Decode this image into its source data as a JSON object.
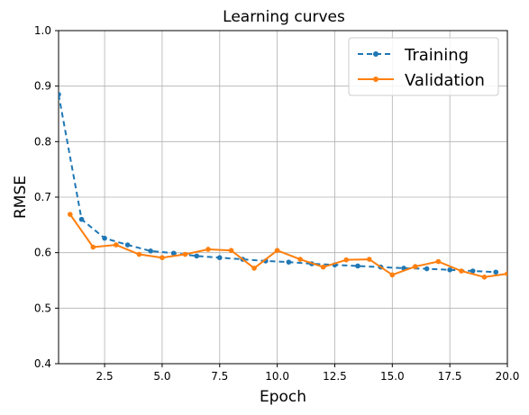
{
  "chart_data": {
    "type": "line",
    "title": "Learning curves",
    "xlabel": "Epoch",
    "ylabel": "RMSE",
    "xlim": [
      0.5,
      20.0
    ],
    "ylim": [
      0.4,
      1.0
    ],
    "grid": true,
    "legend_position": "top-right",
    "x_ticks": [
      2.5,
      5.0,
      7.5,
      10.0,
      12.5,
      15.0,
      17.5,
      20.0
    ],
    "x_tick_labels": [
      "2.5",
      "5.0",
      "7.5",
      "10.0",
      "12.5",
      "15.0",
      "17.5",
      "20.0"
    ],
    "y_ticks": [
      0.4,
      0.5,
      0.6,
      0.7,
      0.8,
      0.9,
      1.0
    ],
    "y_tick_labels": [
      "0.4",
      "0.5",
      "0.6",
      "0.7",
      "0.8",
      "0.9",
      "1.0"
    ],
    "series": [
      {
        "name": "Training",
        "color": "#1f77b4",
        "line_style": "dashed",
        "marker": "dot",
        "x": [
          0.5,
          1.5,
          2.5,
          3.5,
          4.5,
          5.5,
          6.5,
          7.5,
          8.5,
          9.5,
          10.5,
          11.5,
          12.5,
          13.5,
          14.5,
          15.5,
          16.5,
          17.5,
          18.5,
          19.5
        ],
        "y": [
          0.885,
          0.66,
          0.626,
          0.614,
          0.603,
          0.599,
          0.594,
          0.591,
          0.588,
          0.585,
          0.583,
          0.58,
          0.578,
          0.576,
          0.574,
          0.572,
          0.571,
          0.569,
          0.567,
          0.565
        ]
      },
      {
        "name": "Validation",
        "color": "#ff7f0e",
        "line_style": "solid",
        "marker": "dot",
        "x": [
          1,
          2,
          3,
          4,
          5,
          6,
          7,
          8,
          9,
          10,
          11,
          12,
          13,
          14,
          15,
          16,
          17,
          18,
          19,
          20
        ],
        "y": [
          0.669,
          0.61,
          0.614,
          0.597,
          0.591,
          0.597,
          0.606,
          0.604,
          0.572,
          0.604,
          0.588,
          0.574,
          0.587,
          0.588,
          0.56,
          0.575,
          0.584,
          0.567,
          0.556,
          0.562
        ]
      }
    ]
  }
}
